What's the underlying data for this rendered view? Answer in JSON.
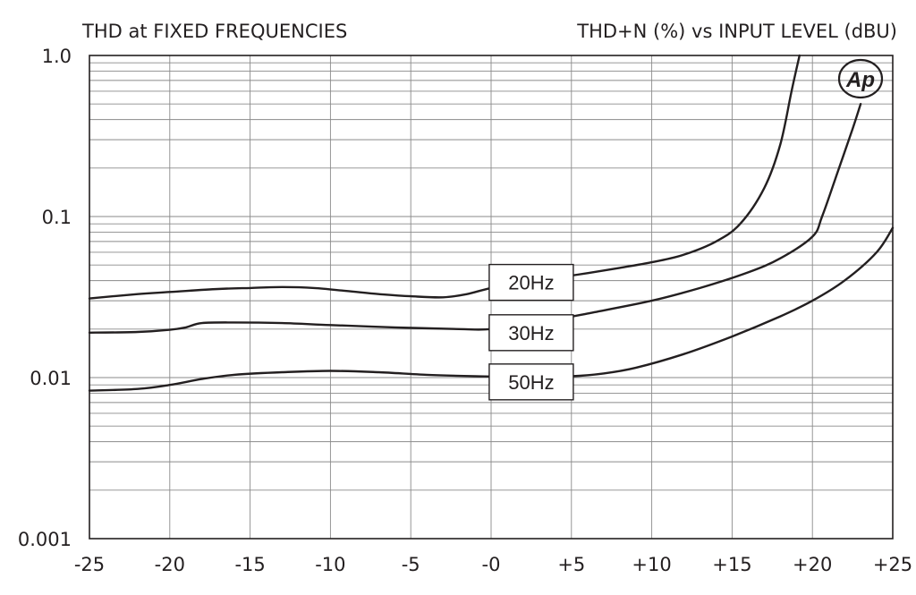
{
  "chart_data": {
    "type": "line",
    "title_left": "THD at FIXED FREQUENCIES",
    "title_right": "THD+N (%) vs INPUT LEVEL (dBU)",
    "xlabel": "",
    "ylabel": "",
    "x_scale": "linear",
    "y_scale": "log",
    "xlim": [
      -25,
      25
    ],
    "ylim": [
      0.001,
      1.0
    ],
    "x_tick_values": [
      -25,
      -20,
      -15,
      -10,
      -5,
      0,
      5,
      10,
      15,
      20,
      25
    ],
    "x_tick_labels": [
      "-25",
      "-20",
      "-15",
      "-10",
      "-5",
      "-0",
      "+5",
      "+10",
      "+15",
      "+20",
      "+25"
    ],
    "y_tick_values": [
      0.001,
      0.01,
      0.1,
      1.0
    ],
    "y_tick_labels": [
      "0.001",
      "0.01",
      "0.1",
      "1.0"
    ],
    "grid": true,
    "legend": "none",
    "logo": "Ap",
    "series": [
      {
        "label": "20Hz",
        "label_at": [
          2.5,
          0.039
        ],
        "points": [
          [
            -25,
            0.031
          ],
          [
            -22,
            0.033
          ],
          [
            -20,
            0.034
          ],
          [
            -17,
            0.0355
          ],
          [
            -15,
            0.036
          ],
          [
            -13,
            0.0365
          ],
          [
            -11,
            0.036
          ],
          [
            -9,
            0.0345
          ],
          [
            -7,
            0.033
          ],
          [
            -5,
            0.032
          ],
          [
            -3,
            0.0315
          ],
          [
            -1.5,
            0.033
          ],
          [
            0,
            0.036
          ],
          [
            2,
            0.039
          ],
          [
            5,
            0.043
          ],
          [
            8,
            0.048
          ],
          [
            10,
            0.052
          ],
          [
            12,
            0.058
          ],
          [
            14,
            0.07
          ],
          [
            15.5,
            0.09
          ],
          [
            17,
            0.15
          ],
          [
            18,
            0.28
          ],
          [
            18.7,
            0.6
          ],
          [
            19.2,
            1.0
          ]
        ]
      },
      {
        "label": "30Hz",
        "label_at": [
          2.5,
          0.019
        ],
        "points": [
          [
            -25,
            0.019
          ],
          [
            -22,
            0.0192
          ],
          [
            -20,
            0.0198
          ],
          [
            -19,
            0.0205
          ],
          [
            -18,
            0.0218
          ],
          [
            -16,
            0.022
          ],
          [
            -13,
            0.0218
          ],
          [
            -10,
            0.0212
          ],
          [
            -6,
            0.0205
          ],
          [
            -2,
            0.02
          ],
          [
            0,
            0.02
          ],
          [
            3,
            0.022
          ],
          [
            6,
            0.025
          ],
          [
            10,
            0.03
          ],
          [
            13,
            0.036
          ],
          [
            16,
            0.045
          ],
          [
            18,
            0.055
          ],
          [
            20,
            0.075
          ],
          [
            20.6,
            0.1
          ],
          [
            21.5,
            0.18
          ],
          [
            22.5,
            0.35
          ],
          [
            23,
            0.5
          ]
        ]
      },
      {
        "label": "50Hz",
        "label_at": [
          2.5,
          0.0094
        ],
        "points": [
          [
            -25,
            0.0083
          ],
          [
            -22,
            0.0085
          ],
          [
            -20,
            0.009
          ],
          [
            -18,
            0.0098
          ],
          [
            -16,
            0.0104
          ],
          [
            -13,
            0.0108
          ],
          [
            -10,
            0.011
          ],
          [
            -7,
            0.0108
          ],
          [
            -4,
            0.0104
          ],
          [
            -1,
            0.0102
          ],
          [
            2,
            0.0101
          ],
          [
            5,
            0.0102
          ],
          [
            7,
            0.0106
          ],
          [
            9,
            0.0115
          ],
          [
            12,
            0.014
          ],
          [
            15,
            0.018
          ],
          [
            18,
            0.024
          ],
          [
            20,
            0.03
          ],
          [
            22,
            0.04
          ],
          [
            24,
            0.06
          ],
          [
            25,
            0.085
          ]
        ]
      }
    ]
  }
}
